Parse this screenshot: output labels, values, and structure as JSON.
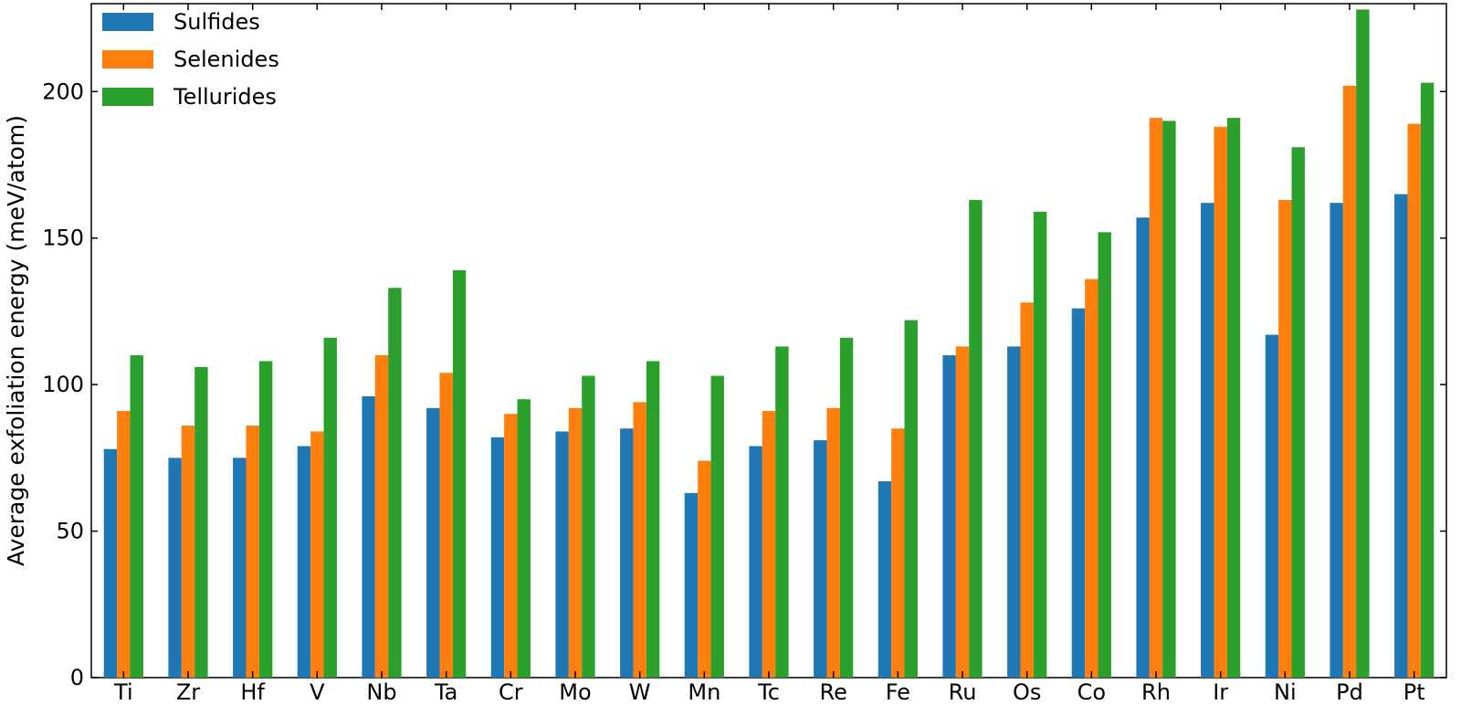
{
  "chart_data": {
    "type": "bar",
    "title": "",
    "xlabel": "",
    "ylabel": "Average exfoliation energy (meV/atom)",
    "ylim": [
      0,
      230
    ],
    "yticks": [
      0,
      50,
      100,
      150,
      200
    ],
    "grid": false,
    "legend_position": "top-left",
    "categories": [
      "Ti",
      "Zr",
      "Hf",
      "V",
      "Nb",
      "Ta",
      "Cr",
      "Mo",
      "W",
      "Mn",
      "Tc",
      "Re",
      "Fe",
      "Ru",
      "Os",
      "Co",
      "Rh",
      "Ir",
      "Ni",
      "Pd",
      "Pt"
    ],
    "series": [
      {
        "name": "Sulfides",
        "color": "#1f77b4",
        "values": [
          78,
          75,
          75,
          79,
          96,
          92,
          82,
          84,
          85,
          63,
          79,
          81,
          67,
          110,
          113,
          126,
          157,
          162,
          117,
          162,
          165
        ]
      },
      {
        "name": "Selenides",
        "color": "#ff7f0e",
        "values": [
          91,
          86,
          86,
          84,
          110,
          104,
          90,
          92,
          94,
          74,
          91,
          92,
          85,
          113,
          128,
          136,
          191,
          188,
          163,
          202,
          189
        ]
      },
      {
        "name": "Tellurides",
        "color": "#2ca02c",
        "values": [
          110,
          106,
          108,
          116,
          133,
          139,
          95,
          103,
          108,
          103,
          113,
          116,
          122,
          163,
          159,
          152,
          190,
          191,
          181,
          228,
          203
        ]
      }
    ]
  }
}
